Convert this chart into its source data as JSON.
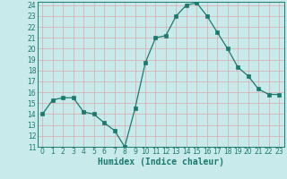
{
  "x": [
    0,
    1,
    2,
    3,
    4,
    5,
    6,
    7,
    8,
    9,
    10,
    11,
    12,
    13,
    14,
    15,
    16,
    17,
    18,
    19,
    20,
    21,
    22,
    23
  ],
  "y": [
    14,
    15.3,
    15.5,
    15.5,
    14.2,
    14.0,
    13.2,
    12.5,
    11.0,
    14.5,
    18.7,
    21.0,
    21.2,
    23.0,
    24.0,
    24.2,
    23.0,
    21.5,
    20.0,
    18.3,
    17.5,
    16.3,
    15.8,
    15.8
  ],
  "line_color": "#1a7a6e",
  "marker_color": "#1a7a6e",
  "bg_color": "#c8eaea",
  "grid_color": "#dba8a8",
  "xlabel": "Humidex (Indice chaleur)",
  "ylim_min": 11,
  "ylim_max": 24,
  "xlim_min": -0.5,
  "xlim_max": 23.5,
  "yticks": [
    11,
    12,
    13,
    14,
    15,
    16,
    17,
    18,
    19,
    20,
    21,
    22,
    23,
    24
  ],
  "xticks": [
    0,
    1,
    2,
    3,
    4,
    5,
    6,
    7,
    8,
    9,
    10,
    11,
    12,
    13,
    14,
    15,
    16,
    17,
    18,
    19,
    20,
    21,
    22,
    23
  ],
  "xlabel_color": "#1a7a6e",
  "tick_color": "#1a7a6e",
  "tick_fontsize": 5.5,
  "xlabel_fontsize": 7,
  "linewidth": 0.9,
  "markersize": 2.2
}
